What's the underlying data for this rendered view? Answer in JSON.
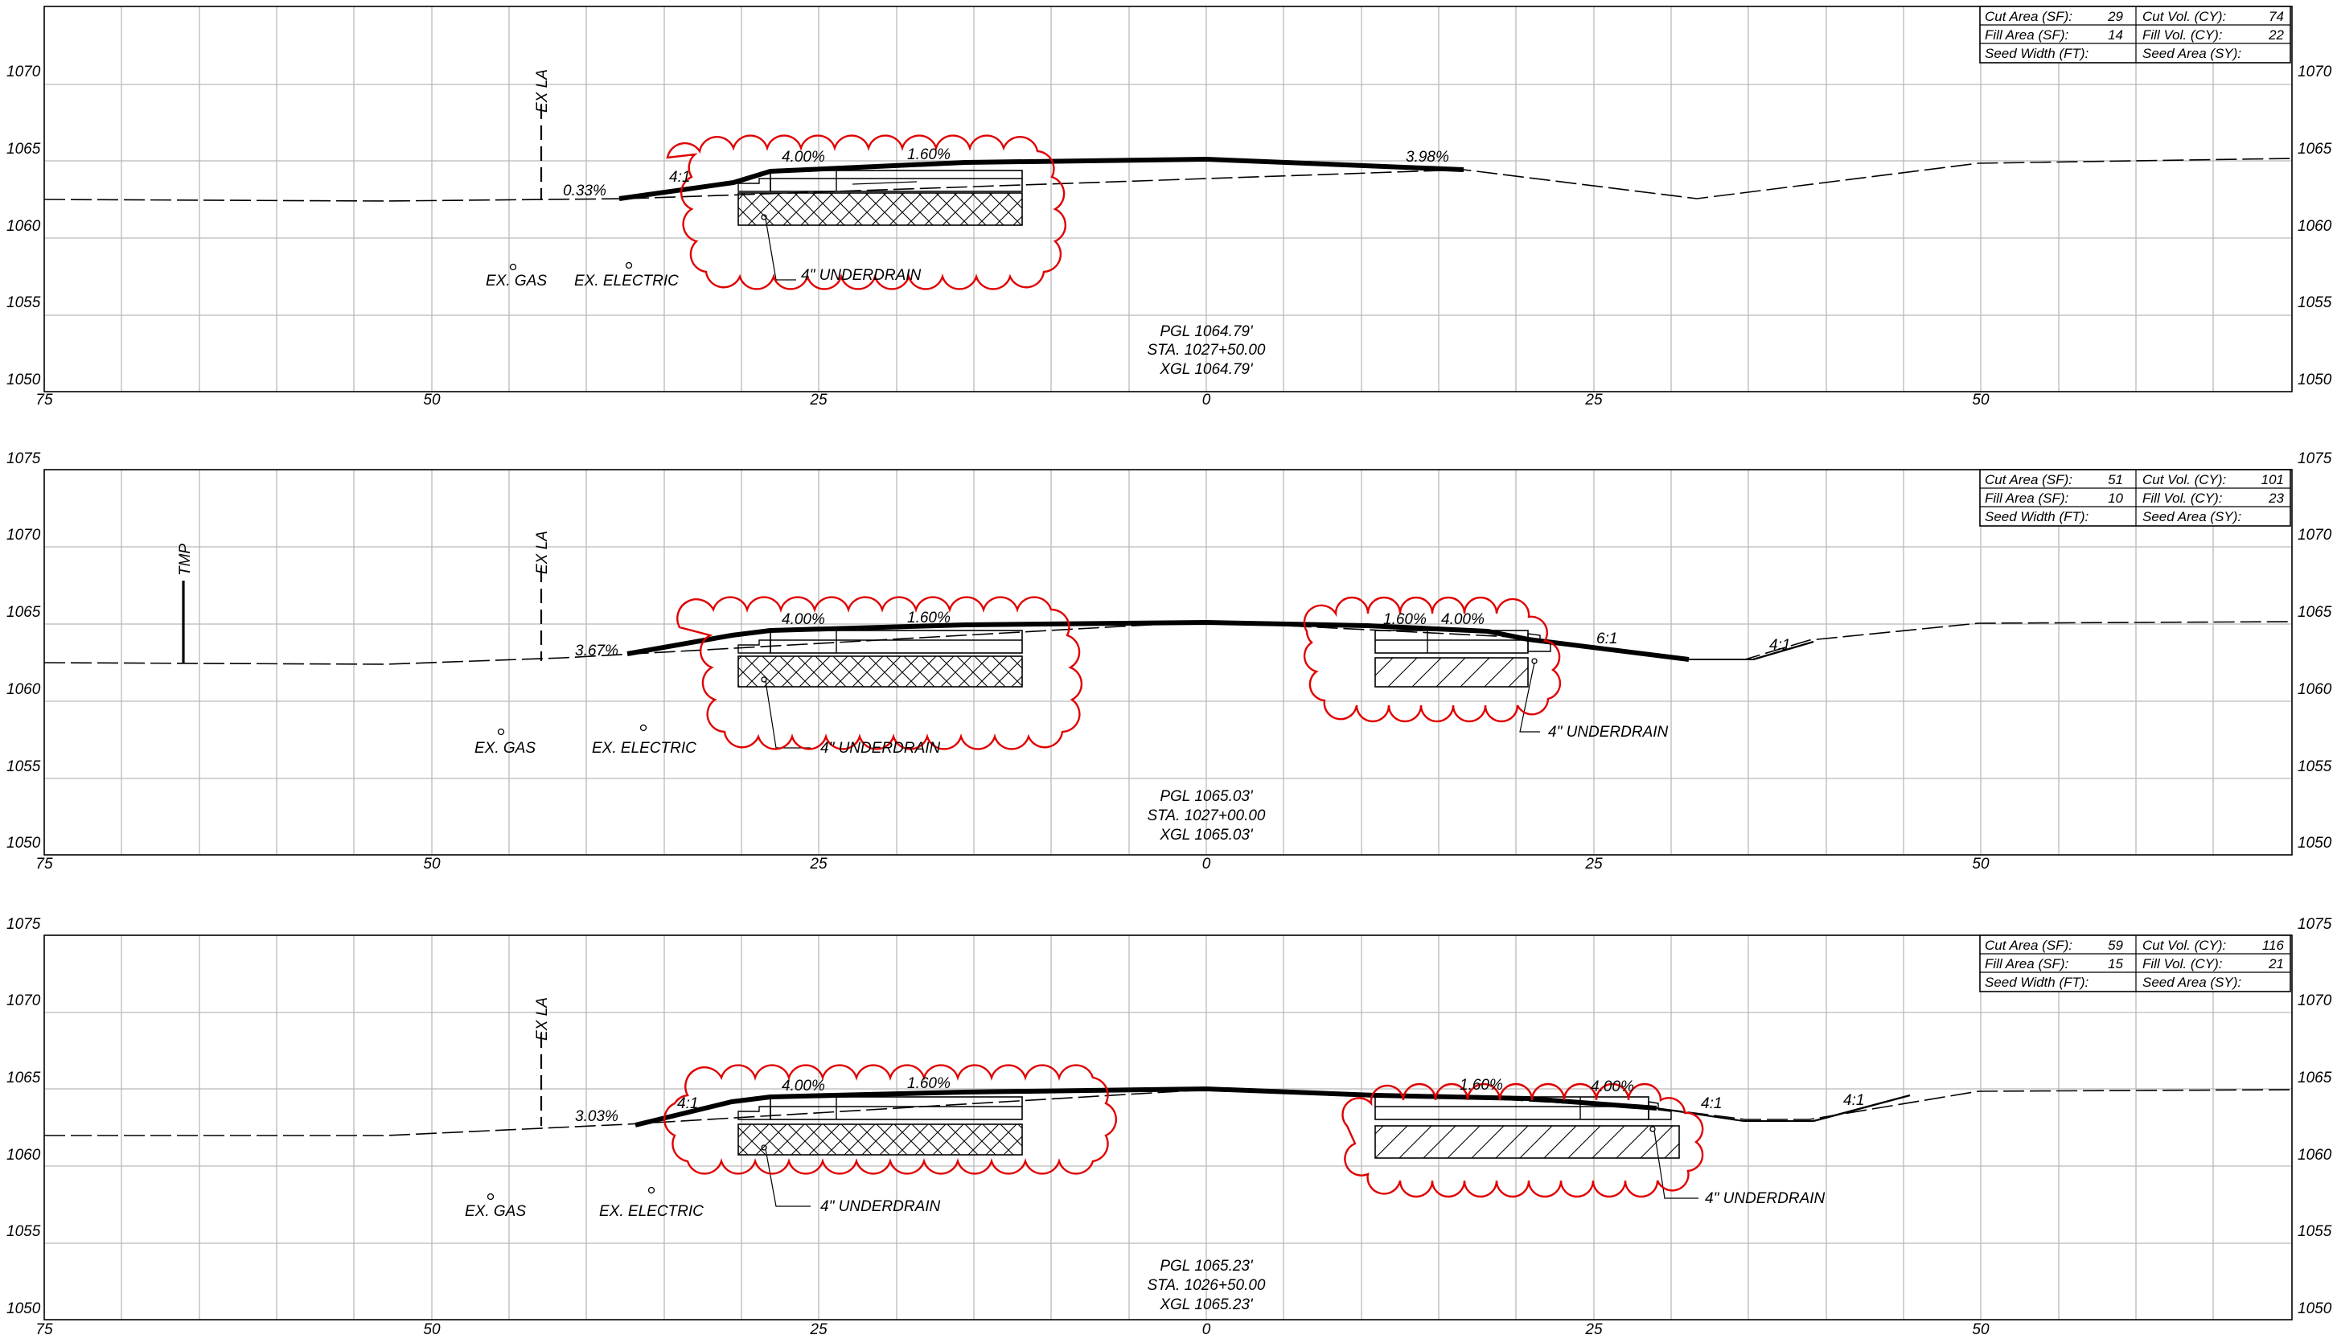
{
  "colors": {
    "revision_cloud": "#e00000",
    "grid": "#b9b9b9",
    "line": "#000000"
  },
  "x_axis_labels": [
    "75",
    "50",
    "25",
    "0",
    "25",
    "50"
  ],
  "sections": [
    {
      "station": "STA. 1027+50.00",
      "pgl": "PGL 1064.79'",
      "xgl": "XGL 1064.79'",
      "elev_labels": [
        "1070",
        "1065",
        "1060",
        "1055",
        "1050"
      ],
      "quantities": [
        [
          "Cut Area (SF):",
          "29",
          "Cut Vol. (CY):",
          "74"
        ],
        [
          "Fill Area (SF):",
          "14",
          "Fill Vol. (CY):",
          "22"
        ],
        [
          "Seed Width (FT):",
          "",
          "Seed Area (SY):",
          ""
        ]
      ],
      "annotations": {
        "ex_la": "EX LA",
        "slope_left": "0.33%",
        "side_slope": "4:1",
        "cross_slope_a": "4.00%",
        "cross_slope_b": "1.60%",
        "cross_slope_c": "3.98%",
        "ex_gas": "EX. GAS",
        "ex_electric": "EX. ELECTRIC",
        "underdrain": "4\" UNDERDRAIN"
      }
    },
    {
      "station": "STA. 1027+00.00",
      "pgl": "PGL 1065.03'",
      "xgl": "XGL 1065.03'",
      "elev_labels": [
        "1075",
        "1070",
        "1065",
        "1060",
        "1055",
        "1050"
      ],
      "quantities": [
        [
          "Cut Area (SF):",
          "51",
          "Cut Vol. (CY):",
          "101"
        ],
        [
          "Fill Area (SF):",
          "10",
          "Fill Vol. (CY):",
          "23"
        ],
        [
          "Seed Width (FT):",
          "",
          "Seed Area (SY):",
          ""
        ]
      ],
      "annotations": {
        "tmp": "TMP",
        "ex_la": "EX LA",
        "slope_left": "3.67%",
        "cross_slope_a": "4.00%",
        "cross_slope_b": "1.60%",
        "cross_slope_c": "1.60%",
        "cross_slope_d": "4.00%",
        "side_slope_r1": "6:1",
        "side_slope_r2": "4:1",
        "ex_gas": "EX. GAS",
        "ex_electric": "EX. ELECTRIC",
        "underdrain_left": "4\" UNDERDRAIN",
        "underdrain_right": "4\" UNDERDRAIN"
      }
    },
    {
      "station": "STA. 1026+50.00",
      "pgl": "PGL 1065.23'",
      "xgl": "XGL 1065.23'",
      "elev_labels": [
        "1075",
        "1070",
        "1065",
        "1060",
        "1055",
        "1050"
      ],
      "quantities": [
        [
          "Cut Area (SF):",
          "59",
          "Cut Vol. (CY):",
          "116"
        ],
        [
          "Fill Area (SF):",
          "15",
          "Fill Vol. (CY):",
          "21"
        ],
        [
          "Seed Width (FT):",
          "",
          "Seed Area (SY):",
          ""
        ]
      ],
      "annotations": {
        "ex_la": "EX LA",
        "slope_left": "3.03%",
        "side_slope": "4:1",
        "cross_slope_a": "4.00%",
        "cross_slope_b": "1.60%",
        "cross_slope_c": "1.60%",
        "cross_slope_d": "4.00%",
        "side_slope_r1": "4:1",
        "side_slope_r2": "4:1",
        "ex_gas": "EX. GAS",
        "ex_electric": "EX. ELECTRIC",
        "underdrain_left": "4\" UNDERDRAIN",
        "underdrain_right": "4\" UNDERDRAIN"
      }
    }
  ]
}
